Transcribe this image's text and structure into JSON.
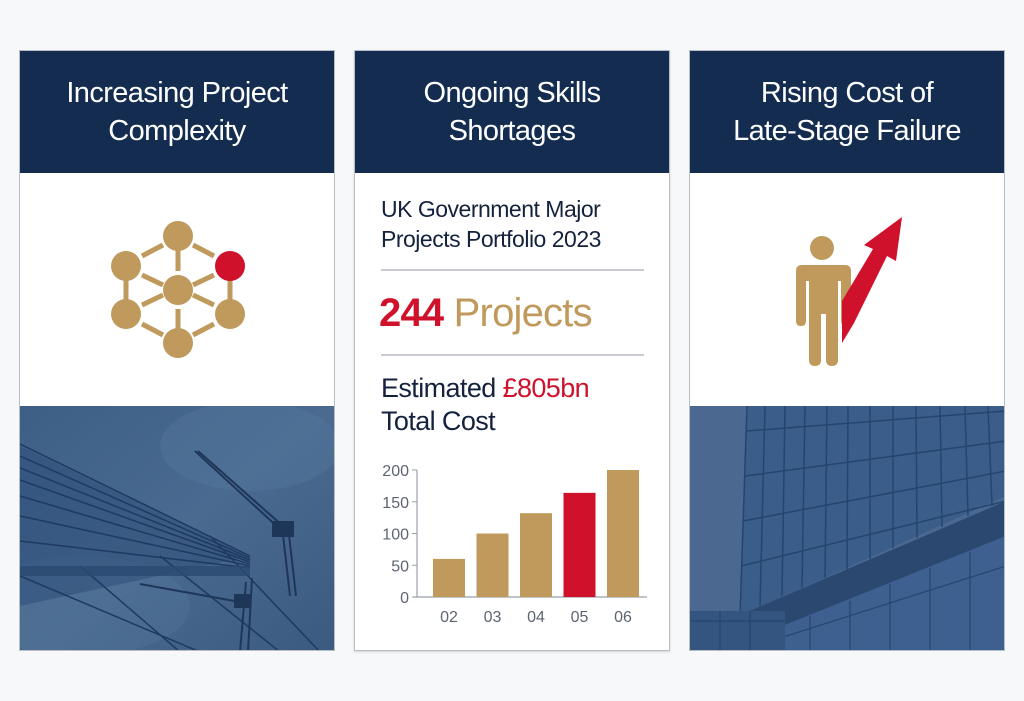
{
  "colors": {
    "navy": "#132c4f",
    "gold": "#bf9a5c",
    "red": "#d0112b",
    "text_dark": "#14223d",
    "axis_text": "#5d6470"
  },
  "cards": [
    {
      "title_line1": "Increasing Project",
      "title_line2": "Complexity",
      "icon": "network-nodes-icon",
      "photo": "glass-building-and-crane-photo"
    },
    {
      "title_line1": "Ongoing Skills",
      "title_line2": "Shortages",
      "portfolio_title_line1": "UK Government Major",
      "portfolio_title_line2": "Projects Portfolio 2023",
      "projects_count": "244",
      "projects_label": "Projects",
      "cost_prefix": "Estimated",
      "cost_value": "£805bn",
      "cost_suffix": "Total Cost"
    },
    {
      "title_line1": "Rising Cost of",
      "title_line2": "Late-Stage Failure",
      "icon": "person-with-rising-arrow-icon",
      "photo": "glass-office-facade-photo"
    }
  ],
  "chart_data": {
    "type": "bar",
    "categories": [
      "02",
      "03",
      "04",
      "05",
      "06"
    ],
    "values": [
      60,
      100,
      132,
      164,
      200
    ],
    "highlight_index": 3,
    "bar_colors": [
      "#bf9a5c",
      "#bf9a5c",
      "#bf9a5c",
      "#d0112b",
      "#bf9a5c"
    ],
    "title": "",
    "xlabel": "",
    "ylabel": "",
    "ylim": [
      0,
      200
    ],
    "yticks": [
      0,
      50,
      100,
      150,
      200
    ],
    "grid": false,
    "legend": null
  }
}
